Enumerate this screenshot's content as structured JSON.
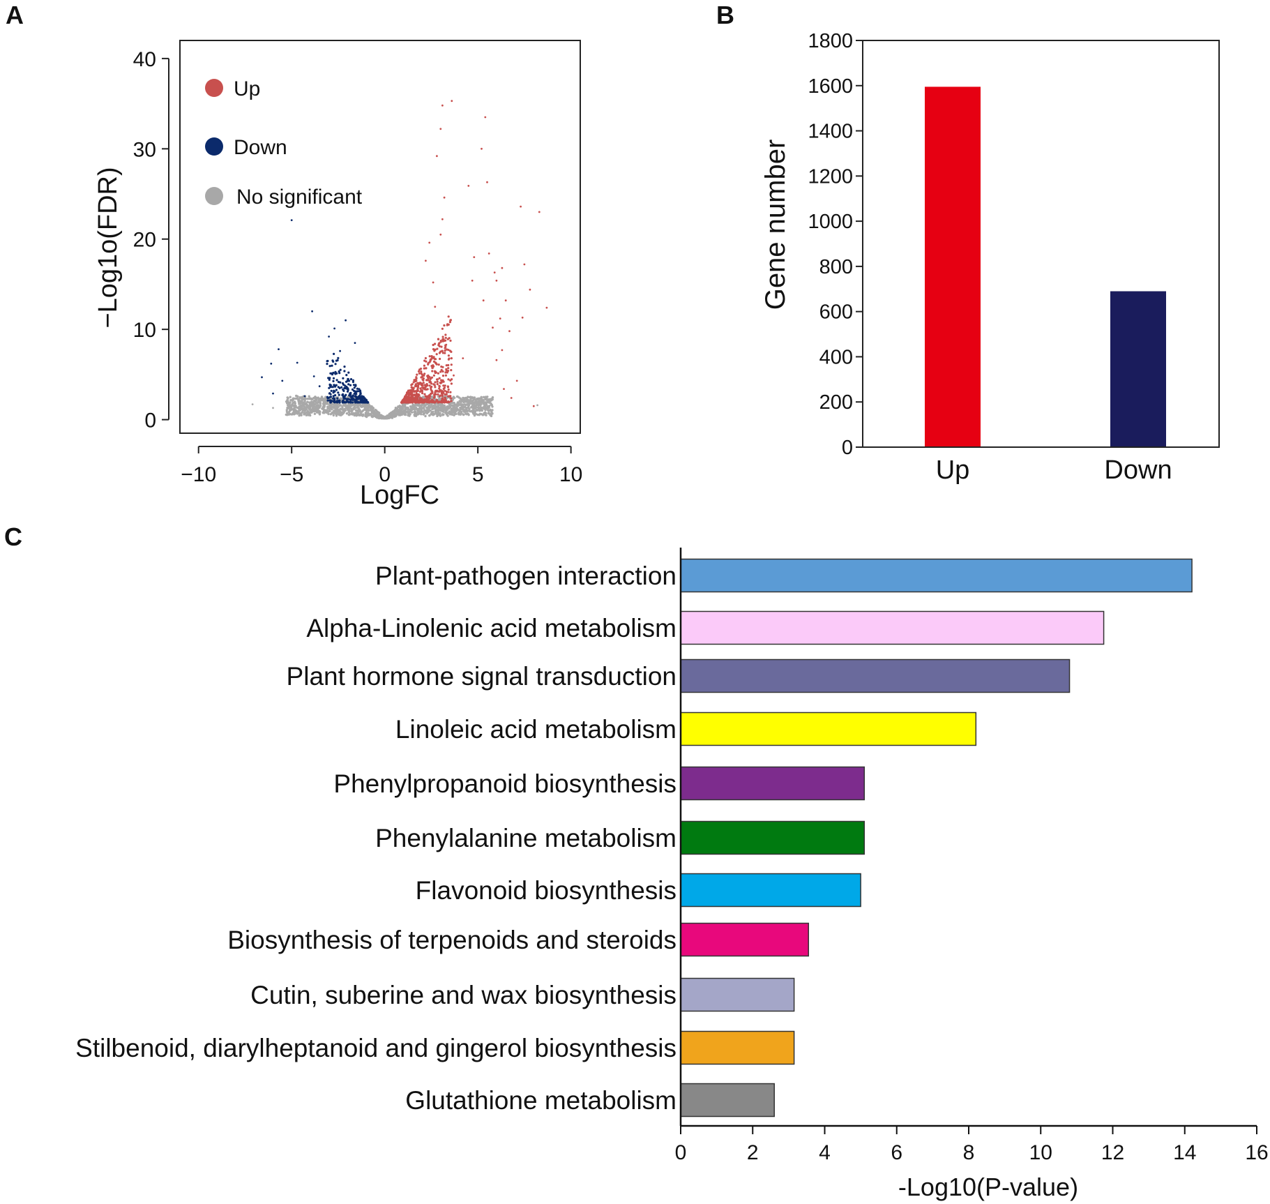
{
  "chart_data": [
    {
      "panel": "A",
      "type": "scatter",
      "xlabel": "LogFC",
      "ylabel": "−Log1o(FDR)",
      "xlim": [
        -11,
        10.5
      ],
      "ylim": [
        -1.5,
        42
      ],
      "xticks": [
        -10,
        -5,
        0,
        5,
        10
      ],
      "xtick_labels": [
        "−10",
        "−5",
        "0",
        "5",
        "10"
      ],
      "yticks": [
        0,
        10,
        20,
        30,
        40
      ],
      "ytick_labels": [
        "0",
        "10",
        "20",
        "30",
        "40"
      ],
      "legend": {
        "placement": "top-left",
        "entries": [
          {
            "label": "Up",
            "color": "#c8504e"
          },
          {
            "label": "Down",
            "color": "#0b2a6b"
          },
          {
            "label": "No significant",
            "color": "#a8a8a8"
          }
        ]
      },
      "series": [
        {
          "name": "Up",
          "color": "#c8504e",
          "points": [
            [
              3.1,
              34.8
            ],
            [
              3.6,
              35.3
            ],
            [
              5.4,
              33.5
            ],
            [
              3.0,
              32.2
            ],
            [
              5.2,
              30.0
            ],
            [
              2.8,
              29.2
            ],
            [
              5.5,
              26.3
            ],
            [
              4.5,
              25.9
            ],
            [
              3.2,
              24.6
            ],
            [
              7.3,
              23.6
            ],
            [
              8.3,
              23.0
            ],
            [
              3.1,
              22.2
            ],
            [
              3.0,
              20.5
            ],
            [
              2.4,
              19.6
            ],
            [
              4.8,
              18.0
            ],
            [
              5.6,
              18.4
            ],
            [
              7.5,
              17.2
            ],
            [
              6.3,
              16.8
            ],
            [
              5.9,
              16.3
            ],
            [
              6.0,
              15.4
            ],
            [
              4.7,
              15.4
            ],
            [
              7.8,
              14.4
            ],
            [
              6.5,
              13.2
            ],
            [
              8.7,
              12.4
            ],
            [
              5.3,
              13.2
            ],
            [
              7.4,
              11.3
            ],
            [
              6.2,
              11.2
            ],
            [
              5.8,
              10.2
            ],
            [
              6.7,
              9.8
            ],
            [
              6.3,
              7.7
            ],
            [
              6.0,
              6.6
            ],
            [
              7.1,
              4.3
            ],
            [
              6.4,
              3.4
            ],
            [
              8.0,
              1.5
            ],
            [
              6.8,
              2.4
            ],
            [
              3.7,
              4.9
            ],
            [
              4.2,
              6.8
            ],
            [
              3.3,
              8.3
            ],
            [
              2.7,
              12.5
            ],
            [
              2.2,
              17.6
            ],
            [
              2.6,
              15.2
            ]
          ]
        },
        {
          "name": "Down",
          "color": "#0b2a6b",
          "points": [
            [
              -5.0,
              22.1
            ],
            [
              -3.9,
              12.0
            ],
            [
              -2.1,
              11.0
            ],
            [
              -2.7,
              10.1
            ],
            [
              -1.6,
              8.5
            ],
            [
              -3.0,
              9.2
            ],
            [
              -5.7,
              7.8
            ],
            [
              -4.7,
              6.3
            ],
            [
              -6.6,
              4.7
            ],
            [
              -6.1,
              6.2
            ],
            [
              -5.5,
              4.3
            ],
            [
              -6.0,
              2.9
            ],
            [
              -3.5,
              3.7
            ],
            [
              -2.9,
              2.8
            ],
            [
              -3.8,
              4.8
            ],
            [
              -2.4,
              7.6
            ],
            [
              -4.3,
              2.6
            ]
          ]
        },
        {
          "name": "No significant",
          "color": "#a8a8a8",
          "points": [
            [
              -7.1,
              1.7
            ],
            [
              -6.0,
              1.3
            ],
            [
              8.2,
              1.6
            ],
            [
              -5.1,
              1.0
            ],
            [
              5.2,
              1.2
            ]
          ]
        }
      ],
      "clusters": [
        {
          "name": "Up",
          "color": "#c8504e",
          "x_range": [
            0.9,
            3.6
          ],
          "y_range": [
            1.9,
            12.0
          ],
          "count": 650
        },
        {
          "name": "Down",
          "color": "#0b2a6b",
          "x_range": [
            -3.1,
            -0.9
          ],
          "y_range": [
            1.9,
            7.6
          ],
          "count": 300
        },
        {
          "name": "No significant",
          "color": "#a8a8a8",
          "x_range": [
            -5.3,
            5.8
          ],
          "y_range": [
            0.2,
            2.6
          ],
          "count": 1800
        }
      ]
    },
    {
      "panel": "B",
      "type": "bar",
      "ylabel": "Gene number",
      "ylim": [
        0,
        1800
      ],
      "yticks": [
        0,
        200,
        400,
        600,
        800,
        1000,
        1200,
        1400,
        1600,
        1800
      ],
      "categories": [
        "Up",
        "Down"
      ],
      "values": [
        1595,
        690
      ],
      "colors": [
        "#e60012",
        "#1a1c5c"
      ]
    },
    {
      "panel": "C",
      "type": "bar",
      "orientation": "horizontal",
      "xlabel": "-Log10(P-value)",
      "xlim": [
        0,
        16
      ],
      "xticks": [
        0,
        2,
        4,
        6,
        8,
        10,
        12,
        14,
        16
      ],
      "categories": [
        "Plant-pathogen interaction",
        "Alpha-Linolenic acid metabolism",
        "Plant hormone signal transduction",
        "Linoleic acid metabolism",
        "Phenylpropanoid biosynthesis",
        "Phenylalanine metabolism",
        "Flavonoid biosynthesis",
        "Biosynthesis of terpenoids and steroids",
        "Cutin, suberine and wax biosynthesis",
        "Stilbenoid, diarylheptanoid and gingerol biosynthesis",
        "Glutathione metabolism"
      ],
      "values": [
        14.2,
        11.75,
        10.8,
        8.2,
        5.1,
        5.1,
        5.0,
        3.55,
        3.15,
        3.15,
        2.6
      ],
      "colors": [
        "#5b9bd5",
        "#fbcaf9",
        "#6a6a9c",
        "#ffff00",
        "#7d2c8d",
        "#007a10",
        "#00a8e8",
        "#e8087c",
        "#a4a6c8",
        "#f0a41c",
        "#888888"
      ]
    }
  ],
  "panels": {
    "a": "A",
    "b": "B",
    "c": "C"
  }
}
